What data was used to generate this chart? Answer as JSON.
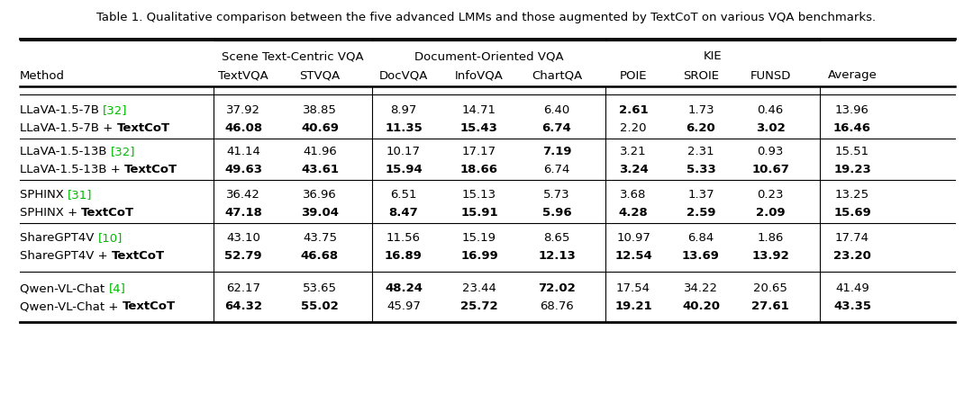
{
  "title": "Table 1. Qualitative comparison between the five advanced LMMs and those augmented by TextCoT on various VQA benchmarks.",
  "rows": [
    {
      "method_plain": "LLaVA-1.5-7B ",
      "method_ref": "[32]",
      "textcot_plain": "LLaVA-1.5-7B + ",
      "textcot_bold": "TextCoT",
      "base": [
        "37.92",
        "38.85",
        "8.97",
        "14.71",
        "6.40",
        "2.61",
        "1.73",
        "0.46",
        "13.96"
      ],
      "textcot": [
        "46.08",
        "40.69",
        "11.35",
        "15.43",
        "6.74",
        "2.20",
        "6.20",
        "3.02",
        "16.46"
      ],
      "base_bold": [
        false,
        false,
        false,
        false,
        false,
        true,
        false,
        false,
        false
      ],
      "textcot_bold_vals": [
        true,
        true,
        true,
        true,
        true,
        false,
        true,
        true,
        true
      ]
    },
    {
      "method_plain": "LLaVA-1.5-13B ",
      "method_ref": "[32]",
      "textcot_plain": "LLaVA-1.5-13B + ",
      "textcot_bold": "TextCoT",
      "base": [
        "41.14",
        "41.96",
        "10.17",
        "17.17",
        "7.19",
        "3.21",
        "2.31",
        "0.93",
        "15.51"
      ],
      "textcot": [
        "49.63",
        "43.61",
        "15.94",
        "18.66",
        "6.74",
        "3.24",
        "5.33",
        "10.67",
        "19.23"
      ],
      "base_bold": [
        false,
        false,
        false,
        false,
        true,
        false,
        false,
        false,
        false
      ],
      "textcot_bold_vals": [
        true,
        true,
        true,
        true,
        false,
        true,
        true,
        true,
        true
      ]
    },
    {
      "method_plain": "SPHINX ",
      "method_ref": "[31]",
      "textcot_plain": "SPHINX + ",
      "textcot_bold": "TextCoT",
      "base": [
        "36.42",
        "36.96",
        "6.51",
        "15.13",
        "5.73",
        "3.68",
        "1.37",
        "0.23",
        "13.25"
      ],
      "textcot": [
        "47.18",
        "39.04",
        "8.47",
        "15.91",
        "5.96",
        "4.28",
        "2.59",
        "2.09",
        "15.69"
      ],
      "base_bold": [
        false,
        false,
        false,
        false,
        false,
        false,
        false,
        false,
        false
      ],
      "textcot_bold_vals": [
        true,
        true,
        true,
        true,
        true,
        true,
        true,
        true,
        true
      ]
    },
    {
      "method_plain": "ShareGPT4V ",
      "method_ref": "[10]",
      "textcot_plain": "ShareGPT4V + ",
      "textcot_bold": "TextCoT",
      "base": [
        "43.10",
        "43.75",
        "11.56",
        "15.19",
        "8.65",
        "10.97",
        "6.84",
        "1.86",
        "17.74"
      ],
      "textcot": [
        "52.79",
        "46.68",
        "16.89",
        "16.99",
        "12.13",
        "12.54",
        "13.69",
        "13.92",
        "23.20"
      ],
      "base_bold": [
        false,
        false,
        false,
        false,
        false,
        false,
        false,
        false,
        false
      ],
      "textcot_bold_vals": [
        true,
        true,
        true,
        true,
        true,
        true,
        true,
        true,
        true
      ]
    },
    {
      "method_plain": "Qwen-VL-Chat ",
      "method_ref": "[4]",
      "textcot_plain": "Qwen-VL-Chat + ",
      "textcot_bold": "TextCoT",
      "base": [
        "62.17",
        "53.65",
        "48.24",
        "23.44",
        "72.02",
        "17.54",
        "34.22",
        "20.65",
        "41.49"
      ],
      "textcot": [
        "64.32",
        "55.02",
        "45.97",
        "25.72",
        "68.76",
        "19.21",
        "40.20",
        "27.61",
        "43.35"
      ],
      "base_bold": [
        false,
        false,
        true,
        false,
        true,
        false,
        false,
        false,
        false
      ],
      "textcot_bold_vals": [
        true,
        true,
        false,
        true,
        false,
        true,
        true,
        true,
        true
      ]
    }
  ],
  "ref_color": "#00bb00",
  "background": "#ffffff",
  "fontsize": 9.5
}
